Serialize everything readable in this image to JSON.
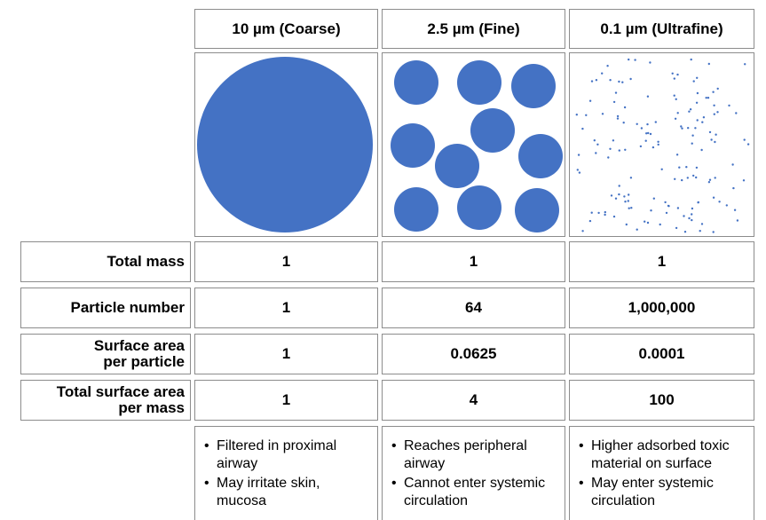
{
  "columns": [
    {
      "header": "10 µm (Coarse)",
      "total_mass": "1",
      "particle_number": "1",
      "surface_area_per_particle": "1",
      "total_surface_area_per_mass": "1",
      "notes": [
        "Filtered in proximal airway",
        "May irritate skin, mucosa"
      ]
    },
    {
      "header": "2.5 µm (Fine)",
      "total_mass": "1",
      "particle_number": "64",
      "surface_area_per_particle": "0.0625",
      "total_surface_area_per_mass": "4",
      "notes": [
        "Reaches peripheral airway",
        "Cannot enter systemic circulation"
      ]
    },
    {
      "header": "0.1 µm (Ultrafine)",
      "total_mass": "1",
      "particle_number": "1,000,000",
      "surface_area_per_particle": "0.0001",
      "total_surface_area_per_mass": "100",
      "notes": [
        "Higher adsorbed toxic material on surface",
        "May enter systemic circulation"
      ]
    }
  ],
  "row_labels": {
    "total_mass": [
      "Total mass"
    ],
    "particle_number": [
      "Particle number"
    ],
    "surface_area_per_particle": [
      "Surface area",
      "per particle"
    ],
    "total_surface_area_per_mass": [
      "Total surface area",
      "per mass"
    ]
  },
  "colors": {
    "particle": "#4472c4",
    "border": "#8c8c8c"
  }
}
